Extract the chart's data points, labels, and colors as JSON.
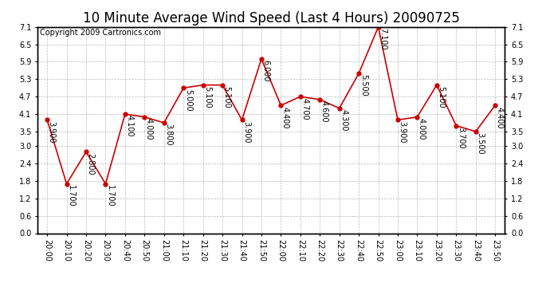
{
  "title": "10 Minute Average Wind Speed (Last 4 Hours) 20090725",
  "copyright": "Copyright 2009 Cartronics.com",
  "x_labels": [
    "20:00",
    "20:10",
    "20:20",
    "20:30",
    "20:40",
    "20:50",
    "21:00",
    "21:10",
    "21:20",
    "21:30",
    "21:40",
    "21:50",
    "22:00",
    "22:10",
    "22:20",
    "22:30",
    "22:40",
    "22:50",
    "23:00",
    "23:10",
    "23:20",
    "23:30",
    "23:40",
    "23:50"
  ],
  "y_values": [
    3.9,
    1.7,
    2.8,
    1.7,
    4.1,
    4.0,
    3.8,
    5.0,
    5.1,
    5.1,
    3.9,
    6.0,
    4.4,
    4.7,
    4.6,
    4.3,
    5.5,
    7.1,
    3.9,
    4.0,
    5.1,
    3.7,
    3.5,
    4.4
  ],
  "y_labels": [
    0.0,
    0.6,
    1.2,
    1.8,
    2.4,
    3.0,
    3.5,
    4.1,
    4.7,
    5.3,
    5.9,
    6.5,
    7.1
  ],
  "ylim": [
    0.0,
    7.1
  ],
  "line_color": "#cc0000",
  "marker_color": "#cc0000",
  "bg_color": "#ffffff",
  "grid_color": "#bbbbbb",
  "title_fontsize": 12,
  "annotation_fontsize": 7,
  "tick_fontsize": 7,
  "copyright_fontsize": 7
}
